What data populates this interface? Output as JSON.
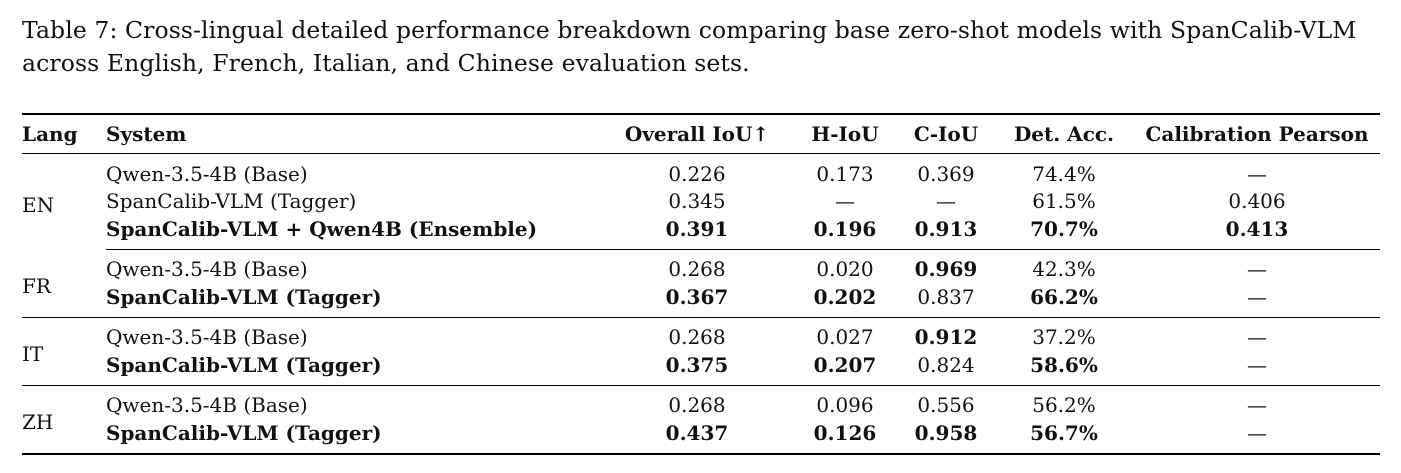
{
  "caption": "Table 7: Cross-lingual detailed performance breakdown comparing base zero-shot models with SpanCalib-VLM across English, French, Italian, and Chinese evaluation sets.",
  "headers": {
    "lang": "Lang",
    "system": "System",
    "overall_iou": "Overall IoU↑",
    "h_iou": "H-IoU",
    "c_iou": "C-IoU",
    "det_acc": "Det. Acc.",
    "calibration": "Calibration Pearson"
  },
  "groups": [
    {
      "lang": "EN",
      "rows": [
        {
          "system": "Qwen-3.5-4B (Base)",
          "overall": "0.226",
          "h_iou": "0.173",
          "c_iou": "0.369",
          "det_acc": "74.4%",
          "calibration": "—"
        },
        {
          "system": "SpanCalib-VLM (Tagger)",
          "overall": "0.345",
          "h_iou": "—",
          "c_iou": "—",
          "det_acc": "61.5%",
          "calibration": "0.406"
        },
        {
          "system": "SpanCalib-VLM + Qwen4B (Ensemble)",
          "overall": "0.391",
          "h_iou": "0.196",
          "c_iou": "0.913",
          "det_acc": "70.7%",
          "calibration": "0.413"
        }
      ]
    },
    {
      "lang": "FR",
      "rows": [
        {
          "system": "Qwen-3.5-4B (Base)",
          "overall": "0.268",
          "h_iou": "0.020",
          "c_iou": "0.969",
          "det_acc": "42.3%",
          "calibration": "—"
        },
        {
          "system": "SpanCalib-VLM (Tagger)",
          "overall": "0.367",
          "h_iou": "0.202",
          "c_iou": "0.837",
          "det_acc": "66.2%",
          "calibration": "—"
        }
      ]
    },
    {
      "lang": "IT",
      "rows": [
        {
          "system": "Qwen-3.5-4B (Base)",
          "overall": "0.268",
          "h_iou": "0.027",
          "c_iou": "0.912",
          "det_acc": "37.2%",
          "calibration": "—"
        },
        {
          "system": "SpanCalib-VLM (Tagger)",
          "overall": "0.375",
          "h_iou": "0.207",
          "c_iou": "0.824",
          "det_acc": "58.6%",
          "calibration": "—"
        }
      ]
    },
    {
      "lang": "ZH",
      "rows": [
        {
          "system": "Qwen-3.5-4B (Base)",
          "overall": "0.268",
          "h_iou": "0.096",
          "c_iou": "0.556",
          "det_acc": "56.2%",
          "calibration": "—"
        },
        {
          "system": "SpanCalib-VLM (Tagger)",
          "overall": "0.437",
          "h_iou": "0.126",
          "c_iou": "0.958",
          "det_acc": "56.7%",
          "calibration": "—"
        }
      ]
    }
  ]
}
